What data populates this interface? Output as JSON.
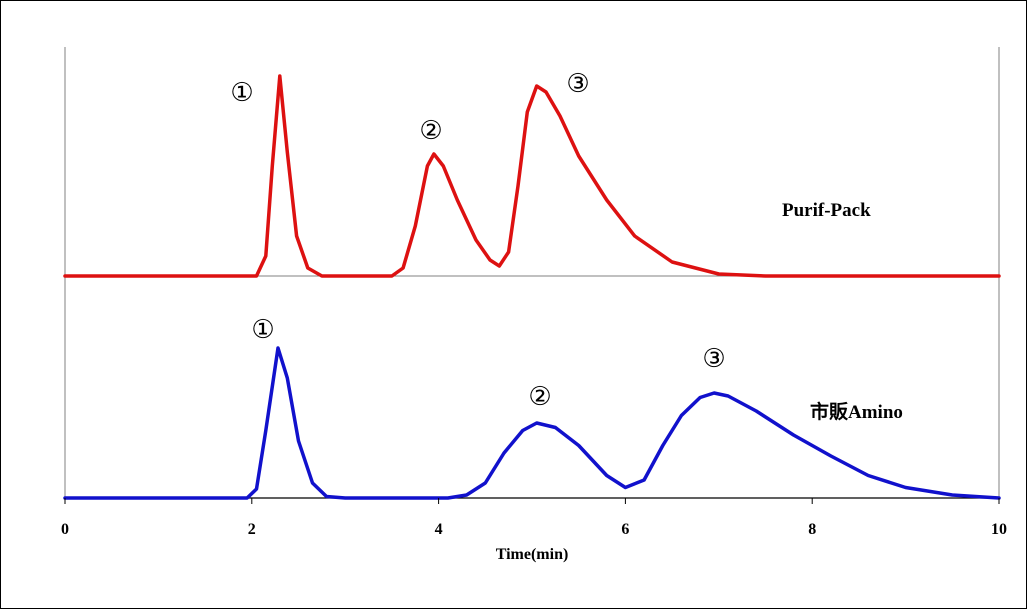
{
  "chart_data": {
    "type": "line",
    "title": "",
    "xlabel": "Time(min)",
    "ylabel": "",
    "xlim": [
      0,
      10
    ],
    "x_ticks": [
      "0",
      "2",
      "4",
      "6",
      "8",
      "10"
    ],
    "grid": false,
    "legend": "none",
    "series": [
      {
        "name": "Purif-Pack",
        "color": "#dd1111",
        "peaks": [
          {
            "label": "①",
            "time": 2.3,
            "relative_height": 1.0
          },
          {
            "label": "②",
            "time": 3.95,
            "relative_height": 0.61
          },
          {
            "label": "③",
            "time": 5.05,
            "relative_height": 0.95
          }
        ],
        "points": [
          [
            0,
            0
          ],
          [
            2.05,
            0
          ],
          [
            2.15,
            0.1
          ],
          [
            2.22,
            0.55
          ],
          [
            2.3,
            1.0
          ],
          [
            2.38,
            0.62
          ],
          [
            2.48,
            0.2
          ],
          [
            2.6,
            0.04
          ],
          [
            2.75,
            0
          ],
          [
            3.5,
            0
          ],
          [
            3.62,
            0.04
          ],
          [
            3.75,
            0.25
          ],
          [
            3.88,
            0.55
          ],
          [
            3.95,
            0.61
          ],
          [
            4.05,
            0.55
          ],
          [
            4.2,
            0.38
          ],
          [
            4.4,
            0.18
          ],
          [
            4.55,
            0.08
          ],
          [
            4.65,
            0.05
          ],
          [
            4.75,
            0.12
          ],
          [
            4.85,
            0.45
          ],
          [
            4.95,
            0.82
          ],
          [
            5.05,
            0.95
          ],
          [
            5.15,
            0.92
          ],
          [
            5.3,
            0.8
          ],
          [
            5.5,
            0.6
          ],
          [
            5.8,
            0.38
          ],
          [
            6.1,
            0.2
          ],
          [
            6.5,
            0.07
          ],
          [
            7.0,
            0.01
          ],
          [
            7.5,
            0
          ],
          [
            10,
            0
          ]
        ]
      },
      {
        "name": "市販Amino",
        "color": "#1111cc",
        "peaks": [
          {
            "label": "①",
            "time": 2.28,
            "relative_height": 1.0
          },
          {
            "label": "②",
            "time": 5.05,
            "relative_height": 0.5
          },
          {
            "label": "③",
            "time": 6.95,
            "relative_height": 0.7
          }
        ],
        "points": [
          [
            0,
            0
          ],
          [
            1.95,
            0
          ],
          [
            2.05,
            0.06
          ],
          [
            2.15,
            0.45
          ],
          [
            2.28,
            1.0
          ],
          [
            2.38,
            0.8
          ],
          [
            2.5,
            0.38
          ],
          [
            2.65,
            0.1
          ],
          [
            2.8,
            0.01
          ],
          [
            3.0,
            0
          ],
          [
            4.1,
            0
          ],
          [
            4.3,
            0.02
          ],
          [
            4.5,
            0.1
          ],
          [
            4.7,
            0.3
          ],
          [
            4.9,
            0.45
          ],
          [
            5.05,
            0.5
          ],
          [
            5.25,
            0.47
          ],
          [
            5.5,
            0.35
          ],
          [
            5.8,
            0.15
          ],
          [
            6.0,
            0.07
          ],
          [
            6.2,
            0.12
          ],
          [
            6.4,
            0.35
          ],
          [
            6.6,
            0.55
          ],
          [
            6.8,
            0.67
          ],
          [
            6.95,
            0.7
          ],
          [
            7.1,
            0.68
          ],
          [
            7.4,
            0.58
          ],
          [
            7.8,
            0.42
          ],
          [
            8.2,
            0.28
          ],
          [
            8.6,
            0.15
          ],
          [
            9.0,
            0.07
          ],
          [
            9.5,
            0.02
          ],
          [
            10,
            0
          ]
        ]
      }
    ]
  }
}
